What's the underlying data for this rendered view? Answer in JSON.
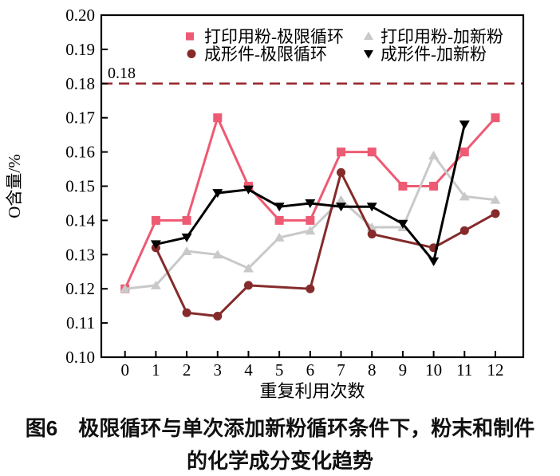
{
  "figure": {
    "caption_line1": "图6　极限循环与单次添加新粉循环条件下，粉末和制件",
    "caption_line2": "的化学成分变化趋势"
  },
  "chart_data": {
    "type": "line",
    "title": "",
    "xlabel": "重复利用次数",
    "ylabel": "O含量/%",
    "ylim": [
      0.1,
      0.2
    ],
    "grid": false,
    "legend_position": "top-inside",
    "y_ticks": [
      {
        "value": 0.1,
        "label": "0.10"
      },
      {
        "value": 0.11,
        "label": "0.11"
      },
      {
        "value": 0.12,
        "label": "0.12"
      },
      {
        "value": 0.13,
        "label": "0.13"
      },
      {
        "value": 0.14,
        "label": "0.14"
      },
      {
        "value": 0.15,
        "label": "0.15"
      },
      {
        "value": 0.16,
        "label": "0.16"
      },
      {
        "value": 0.17,
        "label": "0.17"
      },
      {
        "value": 0.18,
        "label": "0.18"
      },
      {
        "value": 0.19,
        "label": "0.19"
      },
      {
        "value": 0.2,
        "label": "0.20"
      }
    ],
    "x_ticks": [
      0,
      1,
      2,
      3,
      4,
      5,
      6,
      7,
      8,
      9,
      10,
      11,
      12
    ],
    "reference_line": {
      "y": 0.18,
      "label": "0.18",
      "style": "dashed",
      "color": "#98292f"
    },
    "series": [
      {
        "id": "dayin-jixian",
        "name": "打印用粉-极限循环",
        "marker": "square",
        "color": "#ee5a73",
        "points": [
          [
            0,
            0.12
          ],
          [
            1,
            0.14
          ],
          [
            2,
            0.14
          ],
          [
            3,
            0.17
          ],
          [
            4,
            0.15
          ],
          [
            5,
            0.14
          ],
          [
            6,
            0.14
          ],
          [
            7,
            0.16
          ],
          [
            8,
            0.16
          ],
          [
            9,
            0.15
          ],
          [
            10,
            0.15
          ],
          [
            11,
            0.16
          ],
          [
            12,
            0.17
          ]
        ]
      },
      {
        "id": "dayin-jiaxinfen",
        "name": "打印用粉-加新粉",
        "marker": "triangle-up",
        "color": "#c9c9c9",
        "points": [
          [
            0,
            0.12
          ],
          [
            1,
            0.121
          ],
          [
            2,
            0.131
          ],
          [
            3,
            0.13
          ],
          [
            4,
            0.126
          ],
          [
            5,
            0.135
          ],
          [
            6,
            0.137
          ],
          [
            7,
            0.146
          ],
          [
            8,
            0.138
          ],
          [
            9,
            0.138
          ],
          [
            10,
            0.159
          ],
          [
            11,
            0.147
          ],
          [
            12,
            0.146
          ]
        ]
      },
      {
        "id": "chengxing-jixian",
        "name": "成形件-极限循环",
        "marker": "circle",
        "color": "#852b2b",
        "points": [
          [
            1,
            0.132
          ],
          [
            2,
            0.113
          ],
          [
            3,
            0.112
          ],
          [
            4,
            0.121
          ],
          [
            6,
            0.12
          ],
          [
            7,
            0.154
          ],
          [
            8,
            0.136
          ],
          [
            10,
            0.132
          ],
          [
            11,
            0.137
          ],
          [
            12,
            0.142
          ]
        ]
      },
      {
        "id": "chengxing-jiaxinfen",
        "name": "成形件-加新粉",
        "marker": "triangle-down",
        "color": "#000000",
        "points": [
          [
            1,
            0.133
          ],
          [
            2,
            0.135
          ],
          [
            3,
            0.148
          ],
          [
            4,
            0.149
          ],
          [
            5,
            0.144
          ],
          [
            6,
            0.145
          ],
          [
            7,
            0.144
          ],
          [
            8,
            0.144
          ],
          [
            9,
            0.139
          ],
          [
            10,
            0.128
          ],
          [
            11,
            0.168
          ]
        ]
      }
    ]
  }
}
